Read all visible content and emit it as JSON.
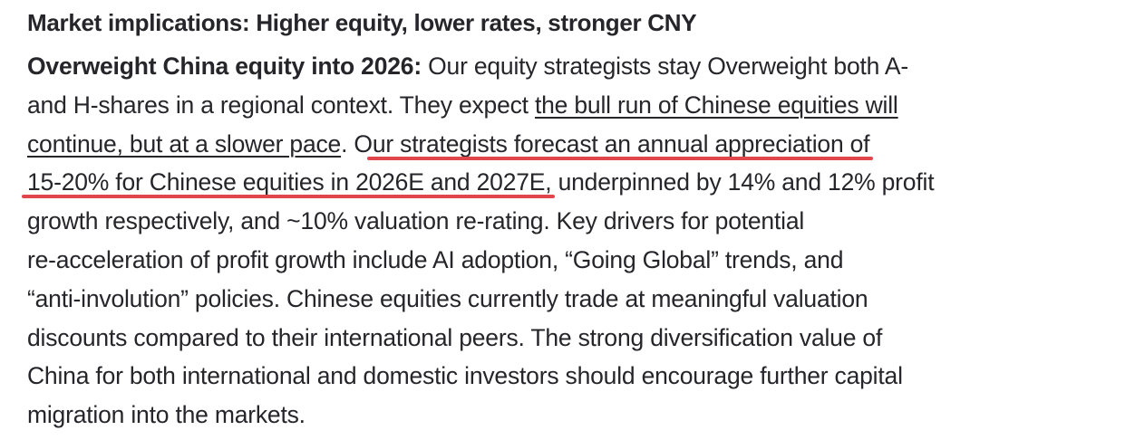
{
  "title": "Market implications: Higher equity, lower rates, stronger CNY",
  "highlight_color": "#e0464c",
  "lines": [
    [
      {
        "t": "Overweight China equity into 2026:",
        "s": "bold"
      },
      {
        "t": " Our equity strategists stay Overweight both A-",
        "s": ""
      }
    ],
    [
      {
        "t": "and H-shares in a regional context. They expect ",
        "s": ""
      },
      {
        "t": "the bull run of Chinese equities will",
        "s": "link"
      }
    ],
    [
      {
        "t": "continue, but at a slower pace",
        "s": "link"
      },
      {
        "t": ". O",
        "s": ""
      },
      {
        "t": "ur strategists forecast an annual appreciation of",
        "s": "hl"
      }
    ],
    [
      {
        "t": "15-20% for Chinese equities in 2026E and 2027E,",
        "s": "hl"
      },
      {
        "t": " underpinned by 14% and 12% profit",
        "s": ""
      }
    ],
    [
      {
        "t": "growth respectively, and ~10% valuation re-rating. Key drivers for potential",
        "s": ""
      }
    ],
    [
      {
        "t": "re-acceleration of profit growth include AI adoption, “Going Global” trends, and",
        "s": ""
      }
    ],
    [
      {
        "t": "“anti-involution” policies. Chinese equities currently trade at meaningful valuation",
        "s": ""
      }
    ],
    [
      {
        "t": "discounts compared to their international peers. The strong diversification value of",
        "s": ""
      }
    ],
    [
      {
        "t": "China for both international and domestic investors should encourage further capital",
        "s": ""
      }
    ],
    [
      {
        "t": "migration into the markets.",
        "s": ""
      }
    ]
  ]
}
